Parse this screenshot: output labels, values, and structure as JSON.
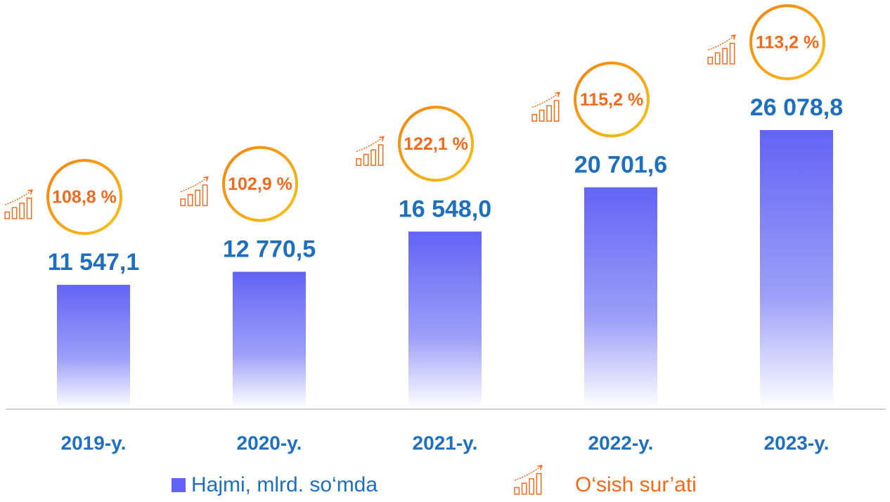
{
  "chart_data": {
    "type": "bar",
    "categories": [
      "2019-y.",
      "2020-y.",
      "2021-y.",
      "2022-y.",
      "2023-y."
    ],
    "series": [
      {
        "name": "Hajmi, mlrd. so‘mda",
        "color": "#6264f6",
        "values": [
          11547.1,
          12770.5,
          16548.0,
          20701.6,
          26078.8
        ],
        "value_labels": [
          "11 547,1",
          "12 770,5",
          "16 548,0",
          "20 701,6",
          "26 078,8"
        ]
      },
      {
        "name": "O‘sish sur’ati",
        "color": "#f26a1b",
        "values": [
          108.8,
          102.9,
          122.1,
          115.2,
          113.2
        ],
        "value_labels": [
          "108,8 %",
          "102,9 %",
          "122,1 %",
          "115,2 %",
          "113,2 %"
        ]
      }
    ]
  }
}
